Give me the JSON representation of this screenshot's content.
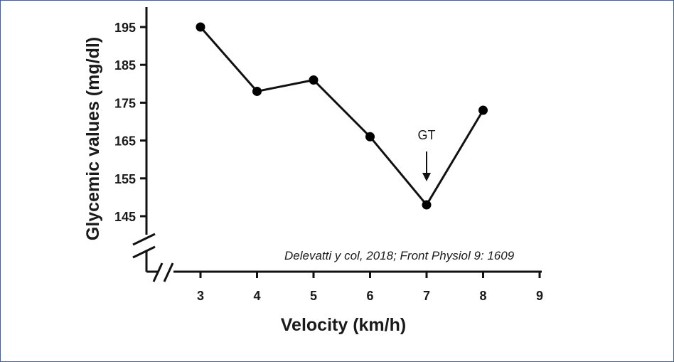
{
  "chart_data": {
    "type": "line",
    "title": "",
    "xlabel": "Velocity (km/h)",
    "ylabel": "Glycemic values (mg/dl)",
    "x": [
      3,
      4,
      5,
      6,
      7,
      8
    ],
    "series": [
      {
        "name": "Glycemic values",
        "values": [
          195,
          178,
          181,
          166,
          148,
          173
        ]
      }
    ],
    "xlim": [
      2.3,
      9
    ],
    "ylim": [
      137,
      199
    ],
    "x_ticks": [
      "3",
      "4",
      "5",
      "6",
      "7",
      "8",
      "9"
    ],
    "y_ticks": [
      "195",
      "185",
      "175",
      "165",
      "155",
      "145"
    ],
    "annotations": [
      {
        "text": "GT",
        "x": 7,
        "arrow": true
      }
    ],
    "axis_breaks": true,
    "grid": false,
    "line_color": "#111111",
    "marker_color": "#000000"
  },
  "citation": "Delevatti y col, 2018; Front Physiol 9: 1609"
}
